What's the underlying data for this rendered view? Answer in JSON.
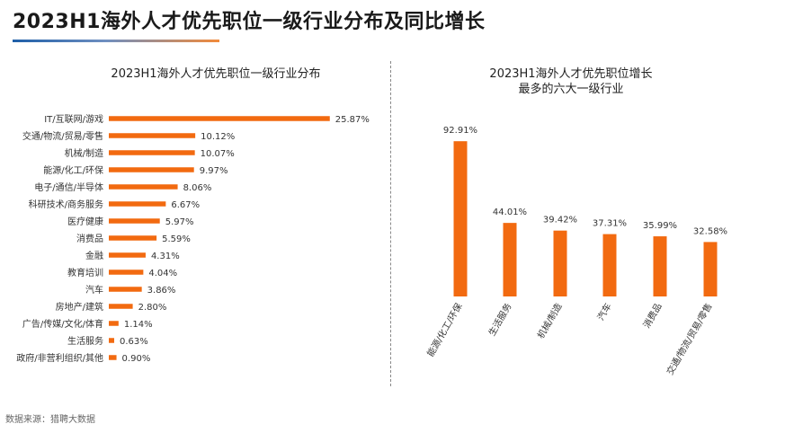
{
  "page": {
    "title": "2023H1海外人才优先职位一级行业分布及同比增长",
    "source": "数据来源：猎聘大数据",
    "accent_color": "#f26a10"
  },
  "chart_data": [
    {
      "type": "bar",
      "orientation": "horizontal",
      "title": "2023H1海外人才优先职位一级行业分布",
      "categories": [
        "IT/互联网/游戏",
        "交通/物流/贸易/零售",
        "机械/制造",
        "能源/化工/环保",
        "电子/通信/半导体",
        "科研技术/商务服务",
        "医疗健康",
        "消费品",
        "金融",
        "教育培训",
        "汽车",
        "房地产/建筑",
        "广告/传媒/文化/体育",
        "生活服务",
        "政府/非营利组织/其他"
      ],
      "values": [
        25.87,
        10.12,
        10.07,
        9.97,
        8.06,
        6.67,
        5.97,
        5.59,
        4.31,
        4.04,
        3.86,
        2.8,
        1.14,
        0.63,
        0.9
      ],
      "labels": [
        "25.87%",
        "10.12%",
        "10.07%",
        "9.97%",
        "8.06%",
        "6.67%",
        "5.97%",
        "5.59%",
        "4.31%",
        "4.04%",
        "3.86%",
        "2.80%",
        "1.14%",
        "0.63%",
        "0.90%"
      ],
      "unit": "%",
      "color": "#f26a10"
    },
    {
      "type": "bar",
      "orientation": "vertical",
      "title_lines": [
        "2023H1海外人才优先职位增长",
        "最多的六大一级行业"
      ],
      "categories": [
        "能源/化工/环保",
        "生活服务",
        "机械/制造",
        "汽车",
        "消费品",
        "交通/物流/贸易/零售"
      ],
      "values": [
        92.91,
        44.01,
        39.42,
        37.31,
        35.99,
        32.58
      ],
      "labels": [
        "92.91%",
        "44.01%",
        "39.42%",
        "37.31%",
        "35.99%",
        "32.58%"
      ],
      "unit": "%",
      "color": "#f26a10"
    }
  ]
}
